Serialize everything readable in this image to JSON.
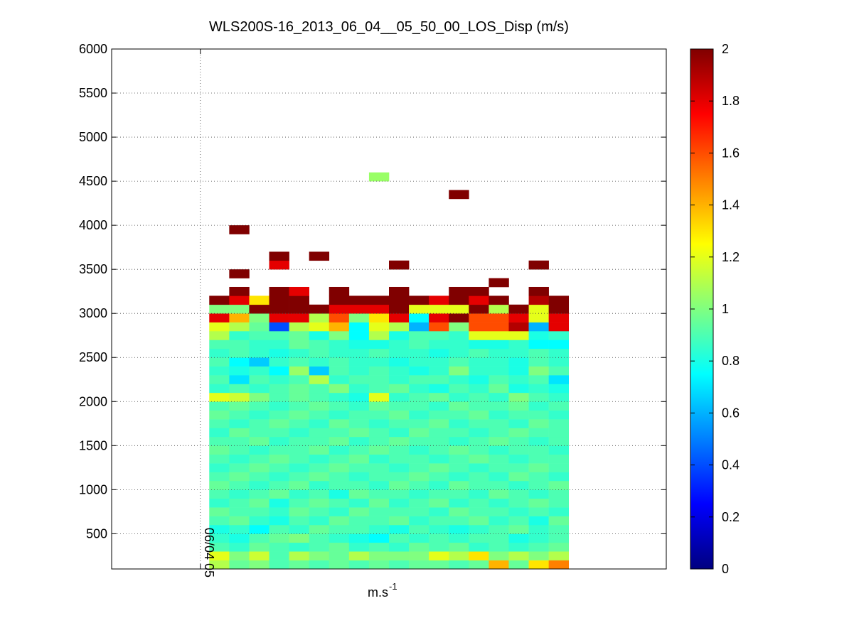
{
  "chart_data": {
    "type": "heatmap",
    "title": "WLS200S-16_2013_06_04__05_50_00_LOS_Disp (m/s)",
    "xlabel": {
      "text": "m.s",
      "superscript": "-1"
    },
    "xlim": [
      4.2,
      9.2
    ],
    "xticks": [
      {
        "value": 5,
        "label": "06/04 05"
      }
    ],
    "ylim": [
      100,
      6000
    ],
    "yticks": [
      500,
      1000,
      1500,
      2000,
      2500,
      3000,
      3500,
      4000,
      4500,
      5000,
      5500,
      6000
    ],
    "clim": [
      0,
      2
    ],
    "cticks": [
      0,
      0.2,
      0.4,
      0.6,
      0.8,
      1,
      1.2,
      1.4,
      1.6,
      1.8,
      2
    ],
    "colormap": "jet",
    "grid": true,
    "x": [
      5.17,
      5.35,
      5.53,
      5.71,
      5.89,
      6.07,
      6.25,
      6.43,
      6.61,
      6.79,
      6.97,
      7.15,
      7.33,
      7.51,
      7.69,
      7.87,
      8.05,
      8.23
    ],
    "y": [
      150,
      250,
      350,
      450,
      550,
      650,
      750,
      850,
      950,
      1050,
      1150,
      1250,
      1350,
      1450,
      1550,
      1650,
      1750,
      1850,
      1950,
      2050,
      2150,
      2250,
      2350,
      2450,
      2550,
      2650,
      2750,
      2850,
      2950,
      3050,
      3150,
      3250,
      3350,
      3450,
      3550,
      3650,
      3950,
      4350,
      4550
    ],
    "z": [
      [
        1.1,
        0.95,
        1.0,
        0.9,
        0.95,
        0.9,
        0.95,
        0.9,
        0.95,
        0.9,
        0.95,
        0.95,
        0.9,
        0.95,
        1.4,
        0.95,
        1.3,
        1.5
      ],
      [
        1.2,
        1.0,
        1.15,
        0.9,
        1.1,
        1.0,
        0.95,
        1.1,
        1.0,
        1.0,
        1.0,
        1.2,
        1.1,
        1.3,
        1.0,
        1.1,
        1.0,
        1.1
      ],
      [
        0.9,
        0.85,
        0.95,
        0.9,
        0.85,
        0.9,
        0.95,
        0.85,
        0.9,
        0.85,
        0.95,
        0.9,
        0.95,
        0.85,
        0.9,
        0.85,
        0.9,
        0.95
      ],
      [
        0.85,
        0.8,
        0.9,
        0.95,
        1.0,
        0.9,
        0.85,
        0.8,
        0.75,
        0.9,
        0.85,
        0.9,
        0.85,
        0.9,
        0.9,
        0.8,
        0.85,
        0.9
      ],
      [
        0.8,
        0.85,
        0.75,
        0.9,
        0.85,
        0.95,
        0.9,
        0.9,
        0.85,
        0.8,
        0.9,
        0.85,
        0.8,
        0.85,
        0.9,
        0.95,
        0.85,
        0.9
      ],
      [
        0.9,
        0.95,
        0.85,
        0.8,
        0.9,
        0.85,
        0.95,
        0.9,
        0.9,
        0.95,
        0.85,
        0.9,
        0.9,
        0.95,
        0.85,
        0.9,
        0.8,
        0.95
      ],
      [
        0.95,
        0.9,
        0.9,
        0.85,
        0.95,
        0.9,
        0.85,
        0.95,
        0.9,
        0.9,
        0.9,
        0.85,
        0.95,
        0.9,
        0.9,
        0.85,
        0.9,
        0.85
      ],
      [
        0.85,
        0.9,
        0.95,
        0.8,
        0.9,
        0.95,
        0.9,
        0.85,
        0.95,
        0.85,
        0.9,
        0.95,
        0.85,
        0.9,
        0.85,
        0.9,
        0.95,
        0.9
      ],
      [
        0.9,
        0.85,
        0.9,
        0.95,
        0.85,
        0.9,
        0.8,
        0.95,
        0.9,
        0.9,
        0.85,
        0.9,
        0.9,
        0.85,
        0.95,
        0.9,
        0.85,
        0.9
      ],
      [
        0.95,
        0.9,
        0.85,
        0.9,
        0.95,
        0.85,
        0.9,
        0.9,
        0.85,
        0.95,
        0.9,
        0.85,
        0.95,
        0.9,
        0.9,
        0.85,
        0.9,
        0.95
      ],
      [
        0.9,
        0.95,
        0.9,
        0.85,
        0.9,
        0.95,
        0.9,
        0.85,
        0.9,
        0.9,
        0.95,
        0.9,
        0.85,
        0.9,
        0.85,
        0.95,
        0.9,
        0.85
      ],
      [
        0.85,
        0.9,
        0.95,
        0.9,
        0.85,
        0.9,
        0.95,
        0.9,
        0.9,
        0.85,
        0.9,
        0.95,
        0.9,
        0.85,
        0.9,
        0.9,
        0.95,
        0.9
      ],
      [
        0.9,
        0.85,
        0.9,
        0.95,
        0.9,
        0.85,
        0.9,
        0.95,
        0.85,
        0.9,
        0.9,
        0.85,
        0.9,
        0.95,
        0.9,
        0.85,
        0.9,
        0.9
      ],
      [
        0.95,
        0.9,
        0.85,
        0.9,
        0.9,
        0.95,
        0.85,
        0.9,
        0.95,
        0.9,
        0.85,
        0.9,
        0.95,
        0.9,
        0.85,
        0.9,
        0.9,
        0.85
      ],
      [
        0.9,
        0.9,
        0.95,
        0.85,
        0.9,
        0.9,
        0.95,
        0.85,
        0.9,
        0.95,
        0.9,
        0.9,
        0.85,
        0.9,
        0.95,
        0.9,
        0.85,
        0.9
      ],
      [
        0.85,
        0.95,
        0.9,
        0.9,
        0.85,
        0.9,
        0.9,
        0.95,
        0.9,
        0.85,
        0.95,
        0.9,
        0.9,
        0.85,
        0.9,
        0.95,
        0.9,
        0.9
      ],
      [
        0.9,
        0.85,
        0.9,
        0.95,
        0.9,
        0.85,
        0.95,
        0.9,
        0.85,
        0.9,
        0.9,
        0.95,
        0.85,
        0.9,
        0.9,
        0.85,
        0.95,
        0.9
      ],
      [
        0.95,
        0.9,
        0.85,
        0.9,
        0.95,
        0.9,
        0.85,
        0.9,
        0.9,
        0.95,
        0.85,
        0.9,
        0.9,
        0.95,
        0.85,
        0.9,
        0.9,
        0.85
      ],
      [
        0.9,
        0.95,
        0.9,
        0.85,
        0.9,
        0.95,
        0.9,
        0.85,
        0.95,
        0.9,
        0.9,
        0.85,
        0.95,
        0.9,
        0.9,
        0.95,
        0.85,
        0.9
      ],
      [
        1.2,
        1.15,
        1.0,
        0.9,
        0.95,
        0.9,
        0.85,
        0.8,
        1.2,
        0.85,
        0.9,
        0.95,
        0.85,
        0.9,
        0.85,
        1.0,
        0.9,
        0.85
      ],
      [
        0.85,
        0.9,
        0.85,
        0.9,
        0.95,
        0.9,
        1.0,
        0.85,
        0.9,
        0.95,
        0.85,
        0.8,
        0.9,
        0.85,
        0.95,
        0.8,
        0.85,
        0.8
      ],
      [
        0.9,
        0.7,
        0.9,
        0.85,
        0.9,
        1.1,
        0.85,
        0.9,
        0.9,
        0.85,
        0.9,
        0.9,
        0.85,
        0.8,
        0.9,
        0.85,
        0.9,
        0.7
      ],
      [
        0.85,
        0.8,
        0.85,
        0.75,
        1.05,
        0.65,
        0.9,
        0.85,
        0.9,
        0.85,
        0.8,
        0.85,
        1.0,
        0.85,
        0.85,
        0.8,
        1.0,
        0.9
      ],
      [
        0.9,
        0.75,
        0.65,
        0.85,
        0.9,
        0.85,
        0.9,
        0.85,
        0.85,
        0.8,
        0.85,
        0.85,
        0.9,
        0.85,
        0.85,
        0.8,
        0.9,
        0.85
      ],
      [
        0.85,
        0.9,
        0.85,
        0.8,
        0.85,
        0.9,
        0.85,
        0.85,
        0.9,
        0.85,
        0.85,
        0.8,
        0.85,
        0.9,
        0.85,
        0.85,
        0.9,
        0.85
      ],
      [
        0.9,
        0.9,
        0.85,
        0.85,
        0.95,
        0.9,
        0.85,
        0.8,
        0.8,
        0.85,
        0.9,
        0.85,
        0.85,
        0.8,
        0.8,
        0.85,
        0.75,
        0.75
      ],
      [
        1.1,
        0.85,
        0.9,
        0.9,
        0.95,
        0.8,
        1.0,
        0.75,
        1.1,
        0.8,
        0.9,
        0.9,
        0.85,
        1.2,
        1.2,
        1.2,
        0.8,
        0.85
      ],
      [
        1.2,
        1.1,
        0.95,
        0.4,
        1.1,
        1.2,
        1.4,
        0.75,
        1.2,
        1.1,
        0.6,
        1.6,
        1.0,
        1.6,
        1.6,
        1.9,
        0.6,
        1.8
      ],
      [
        1.8,
        1.4,
        1.0,
        1.8,
        1.8,
        1.1,
        1.6,
        1.0,
        1.3,
        1.8,
        0.75,
        1.8,
        2,
        1.6,
        1.6,
        1.8,
        1.2,
        1.8
      ],
      [
        1.0,
        1.0,
        2,
        2,
        2,
        2,
        1.8,
        1.8,
        1.8,
        2,
        1.2,
        1.2,
        1.2,
        2,
        1.1,
        2,
        1.2,
        2
      ],
      [
        2,
        1.8,
        1.3,
        2,
        2,
        null,
        2,
        2,
        2,
        2,
        2,
        1.8,
        2,
        1.8,
        2,
        null,
        1.9,
        2
      ],
      [
        null,
        2,
        null,
        2,
        1.8,
        null,
        2,
        null,
        null,
        2,
        null,
        null,
        2,
        2,
        null,
        null,
        2,
        null
      ],
      [
        null,
        null,
        null,
        null,
        null,
        null,
        null,
        null,
        null,
        null,
        null,
        null,
        null,
        null,
        2,
        null,
        null,
        null
      ],
      [
        null,
        2,
        null,
        null,
        null,
        null,
        null,
        null,
        null,
        null,
        null,
        null,
        null,
        null,
        null,
        null,
        null,
        null
      ],
      [
        null,
        null,
        null,
        1.8,
        null,
        null,
        null,
        null,
        null,
        2,
        null,
        null,
        null,
        null,
        null,
        null,
        2,
        null
      ],
      [
        null,
        null,
        null,
        2,
        null,
        2,
        null,
        null,
        null,
        null,
        null,
        null,
        null,
        null,
        null,
        null,
        null,
        null
      ],
      [
        null,
        2,
        null,
        null,
        null,
        null,
        null,
        null,
        null,
        null,
        null,
        null,
        null,
        null,
        null,
        null,
        null,
        null
      ],
      [
        null,
        null,
        null,
        null,
        null,
        null,
        null,
        null,
        null,
        null,
        null,
        null,
        2,
        null,
        null,
        null,
        null,
        null
      ],
      [
        null,
        null,
        null,
        null,
        null,
        null,
        null,
        null,
        1.05,
        null,
        null,
        null,
        null,
        null,
        null,
        null,
        null,
        null
      ]
    ]
  }
}
